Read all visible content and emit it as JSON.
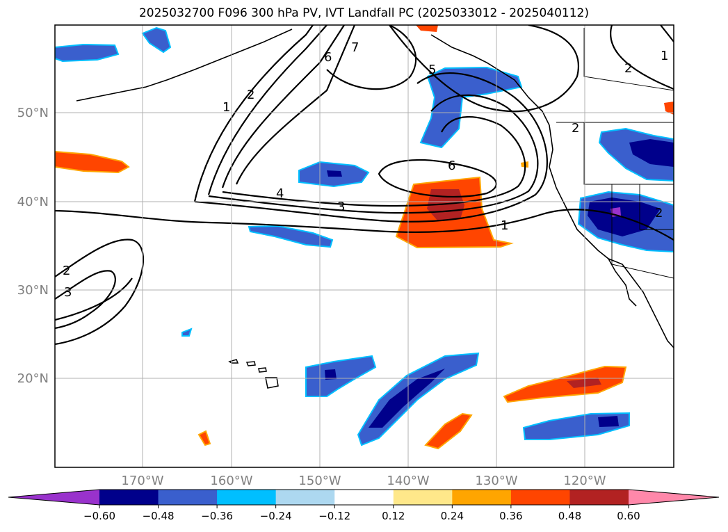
{
  "title": "2025032700 F096 300 hPa PV, IVT Landfall PC (2025033012 - 2025040112)",
  "map": {
    "lat_labels": [
      "50°N",
      "40°N",
      "30°N",
      "20°N"
    ],
    "lon_labels": [
      "170°W",
      "160°W",
      "150°W",
      "140°W",
      "130°W",
      "120°W"
    ],
    "label_color": "#808080",
    "contour_labels": [
      {
        "text": "1"
      },
      {
        "text": "2"
      },
      {
        "text": "6"
      },
      {
        "text": "7"
      },
      {
        "text": "5"
      },
      {
        "text": "1"
      },
      {
        "text": "2"
      },
      {
        "text": "6"
      },
      {
        "text": "4"
      },
      {
        "text": "3"
      },
      {
        "text": "1"
      },
      {
        "text": "2"
      },
      {
        "text": "2"
      },
      {
        "text": "3"
      },
      {
        "text": "2"
      }
    ]
  },
  "colorbar": {
    "ticks": [
      "−0.60",
      "−0.48",
      "−0.36",
      "−0.24",
      "−0.12",
      "0.12",
      "0.24",
      "0.36",
      "0.48",
      "0.60"
    ],
    "colors": [
      "#9932cc",
      "#00008b",
      "#3a5fcd",
      "#00bfff",
      "#add8f0",
      "#ffffff",
      "#ffe88a",
      "#ffa500",
      "#ff4500",
      "#b22222",
      "#ff88aa"
    ]
  }
}
